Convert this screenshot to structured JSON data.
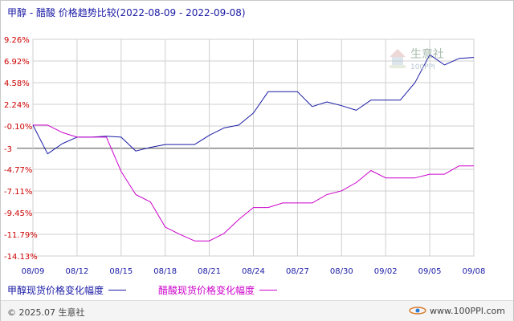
{
  "title": "甲醇 - 醋酸 价格趋势比较(2022-08-09 - 2022-09-08)",
  "footer": {
    "copyright": "© 2025.07 生意社",
    "site": "www.100PPI.com"
  },
  "watermark": {
    "text": "生意社",
    "sub": "100PPI"
  },
  "colors": {
    "series0": "#1a1aa6",
    "series1": "#cc00cc",
    "grid": "#cfcfcf",
    "zero": "#555555"
  },
  "chart_data": {
    "type": "line",
    "title": "甲醇 - 醋酸 价格趋势比较(2022-08-09 - 2022-09-08)",
    "xlabel": "",
    "ylabel": "",
    "ylim": [
      -14.13,
      9.26
    ],
    "grid": true,
    "legend": "bottom",
    "y_ticks": [
      "9.26%",
      "6.92%",
      "4.58%",
      "2.24%",
      "-0.10%",
      "-3",
      "-4.77%",
      "-7.11%",
      "-9.45%",
      "-11.79%",
      "-14.13%"
    ],
    "y_tick_values": [
      9.26,
      6.92,
      4.58,
      2.24,
      -0.1,
      -2.5,
      -4.77,
      -7.11,
      -9.45,
      -11.79,
      -14.13
    ],
    "x_ticks": [
      "08/09",
      "08/12",
      "08/15",
      "08/18",
      "08/21",
      "08/24",
      "08/27",
      "08/30",
      "09/02",
      "09/05",
      "09/08"
    ],
    "x_tick_values": [
      0,
      3,
      6,
      9,
      12,
      15,
      18,
      21,
      24,
      27,
      30
    ],
    "series": [
      {
        "name": "甲醇现货价格变化幅度",
        "x": [
          0,
          1,
          2,
          3,
          4,
          5,
          6,
          7,
          8,
          9,
          10,
          11,
          12,
          13,
          14,
          15,
          16,
          17,
          18,
          19,
          20,
          21,
          22,
          23,
          24,
          25,
          26,
          27,
          28,
          29,
          30
        ],
        "values": [
          0.0,
          -3.1,
          -2.0,
          -1.3,
          -1.3,
          -1.2,
          -1.3,
          -2.8,
          -2.4,
          -2.1,
          -2.1,
          -2.1,
          -1.1,
          -0.3,
          0.0,
          1.3,
          3.6,
          3.6,
          3.6,
          2.0,
          2.5,
          2.1,
          1.6,
          2.7,
          2.7,
          2.7,
          4.6,
          7.6,
          6.5,
          7.2,
          7.3
        ]
      },
      {
        "name": "醋酸现货价格变化幅度",
        "x": [
          0,
          1,
          2,
          3,
          4,
          5,
          6,
          7,
          8,
          9,
          10,
          11,
          12,
          13,
          14,
          15,
          16,
          17,
          18,
          19,
          20,
          21,
          22,
          23,
          24,
          25,
          26,
          27,
          28,
          29,
          30
        ],
        "values": [
          0.0,
          0.0,
          -0.8,
          -1.3,
          -1.3,
          -1.3,
          -5.0,
          -7.5,
          -8.3,
          -11.0,
          -11.8,
          -12.5,
          -12.5,
          -11.7,
          -10.2,
          -8.9,
          -8.9,
          -8.4,
          -8.4,
          -8.4,
          -7.5,
          -7.1,
          -6.2,
          -4.9,
          -5.7,
          -5.7,
          -5.7,
          -5.3,
          -5.3,
          -4.4,
          -4.4
        ]
      }
    ]
  }
}
